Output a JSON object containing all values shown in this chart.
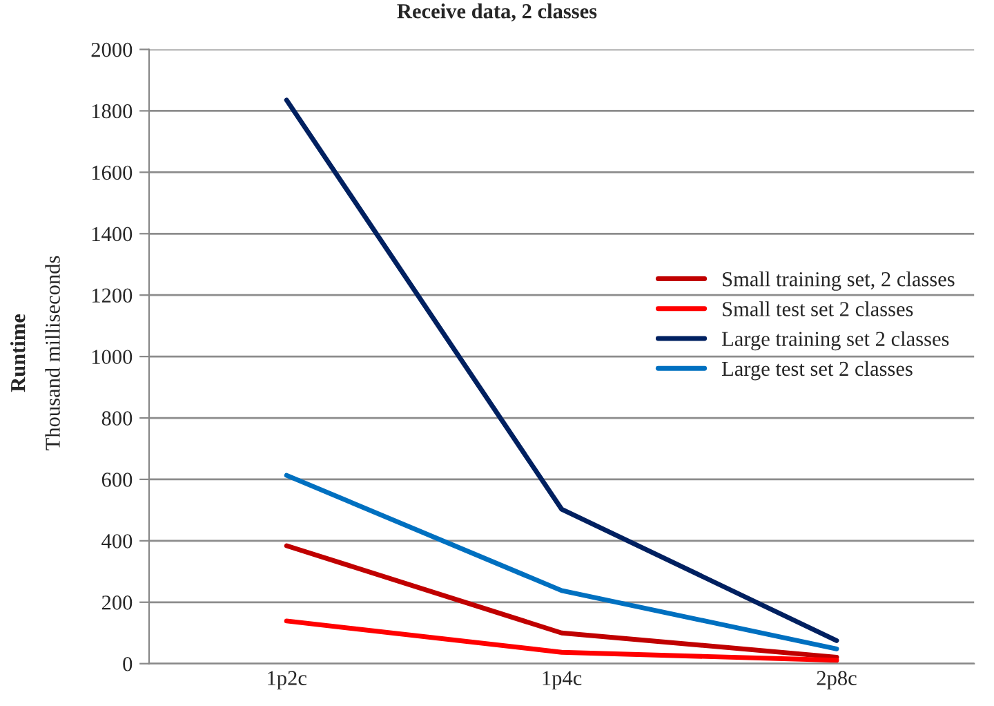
{
  "chart_data": {
    "type": "line",
    "title": "Receive data, 2 classes",
    "ylabel": "Runtime\nThousand milliseconds",
    "categories": [
      "1p2c",
      "1p4c",
      "2p8c"
    ],
    "series": [
      {
        "name": "Small training set, 2 classes",
        "color": "#c00000",
        "values": [
          384,
          100,
          21
        ]
      },
      {
        "name": "Small test set 2 classes",
        "color": "#ff0000",
        "values": [
          139,
          37,
          11
        ]
      },
      {
        "name": "Large training set 2 classes",
        "color": "#002060",
        "values": [
          1835,
          503,
          75
        ]
      },
      {
        "name": "Large test set 2 classes",
        "color": "#0070c0",
        "values": [
          613,
          238,
          48
        ]
      }
    ],
    "ylim": [
      0,
      2000
    ],
    "yticks": [
      0,
      200,
      400,
      600,
      800,
      1000,
      1200,
      1400,
      1600,
      1800,
      2000
    ],
    "grid": "y",
    "legend": "center right",
    "marker": "none",
    "line_style": "solid"
  }
}
